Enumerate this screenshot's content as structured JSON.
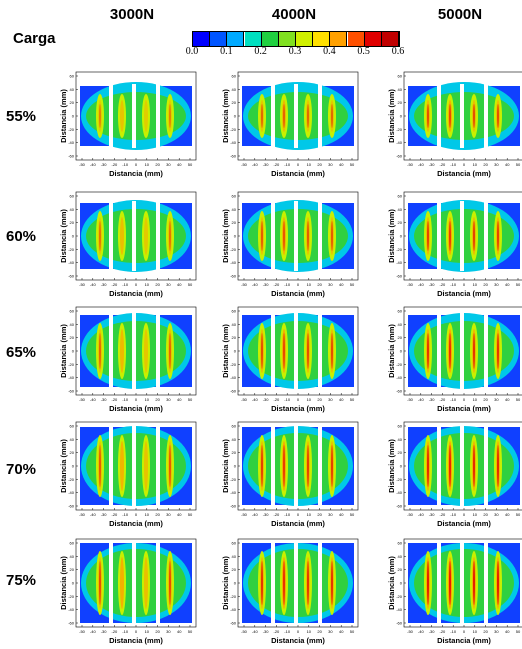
{
  "labels": {
    "carga": "Carga"
  },
  "columns": [
    "3000N",
    "4000N",
    "5000N"
  ],
  "rows": [
    "55%",
    "60%",
    "65%",
    "70%",
    "75%"
  ],
  "colorbar": {
    "ticks": [
      "0.0",
      "0.1",
      "0.2",
      "0.3",
      "0.4",
      "0.5",
      "0.6"
    ],
    "range": [
      0.0,
      0.6
    ],
    "colors": [
      "#0000ff",
      "#0055ff",
      "#00aaff",
      "#00e0c0",
      "#20d040",
      "#80e020",
      "#d0f000",
      "#ffe000",
      "#ffa000",
      "#ff5000",
      "#e00000",
      "#c00000"
    ]
  },
  "chart_data": {
    "type": "heatmap",
    "description_of_grid": "5 x 3 grid of contour maps",
    "xlabel": "Distancia (mm)",
    "ylabel": "Distancia (mm)",
    "x_ticks": [
      "-50",
      "-40",
      "-30",
      "-20",
      "-10",
      "0",
      "10",
      "20",
      "30",
      "40",
      "50"
    ],
    "y_ticks": [
      "60",
      "40",
      "20",
      "0",
      "-20",
      "-40",
      "-60"
    ],
    "xlim": [
      -50,
      50
    ],
    "ylim": [
      -60,
      60
    ],
    "colorbar_range": [
      0.0,
      0.6
    ]
  }
}
